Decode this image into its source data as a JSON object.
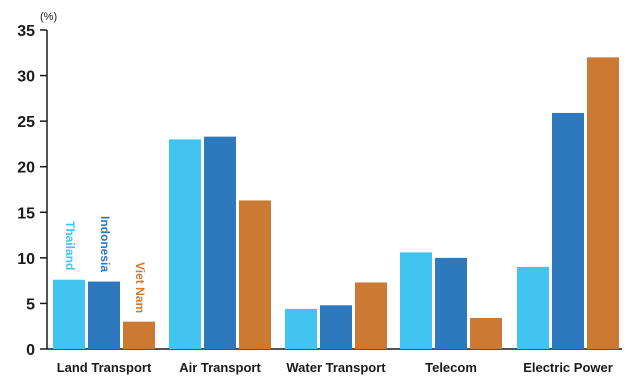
{
  "chart_data": {
    "type": "bar",
    "unit_label": "(%)",
    "categories": [
      "Land Transport",
      "Air Transport",
      "Water Transport",
      "Telecom",
      "Electric Power"
    ],
    "series": [
      {
        "name": "Thailand",
        "color": "#41c4f0",
        "values": [
          7.6,
          23.0,
          4.4,
          10.6,
          9.0
        ]
      },
      {
        "name": "Indonesia",
        "color": "#2e78be",
        "values": [
          7.4,
          23.3,
          4.8,
          10.0,
          25.9
        ]
      },
      {
        "name": "Viet Nam",
        "color": "#cc7a33",
        "values": [
          3.0,
          16.3,
          7.3,
          3.4,
          32.0
        ]
      }
    ],
    "yticks": [
      0,
      5,
      10,
      15,
      20,
      25,
      30,
      35
    ],
    "ylim": [
      0,
      35
    ],
    "grid": false,
    "legend": "rotated labels above first category bars"
  }
}
